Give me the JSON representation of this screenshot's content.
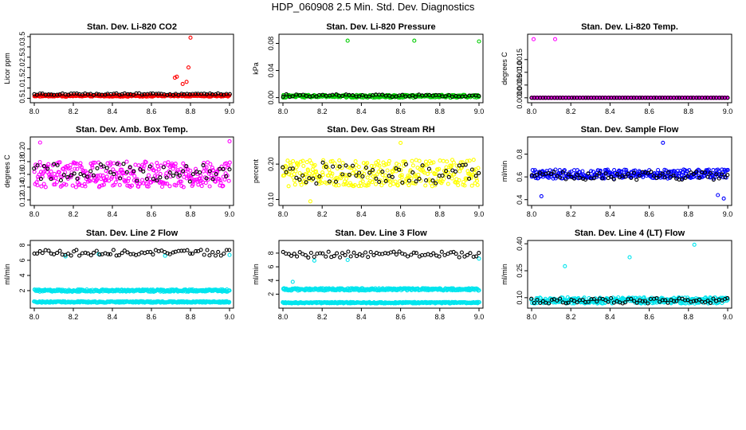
{
  "title": "HDP_060908  2.5 Min. Std. Dev. Diagnostics",
  "chart_data": [
    {
      "type": "scatter",
      "title": "Stan. Dev. Li-820 CO2",
      "xlabel": "",
      "ylabel": "Licor ppm",
      "xlim": [
        8.0,
        9.0
      ],
      "ylim": [
        0.4,
        3.5
      ],
      "xticks": [
        "8.0",
        "8.2",
        "8.4",
        "8.6",
        "8.8",
        "9.0"
      ],
      "yticks": [
        "0.5",
        "1.0",
        "1.5",
        "2.0",
        "2.5",
        "3.0",
        "3.5"
      ],
      "series": [
        {
          "name": "red",
          "color": "#ff0000",
          "n": 300,
          "base": 0.62,
          "spread": 0.08,
          "extra_x": [
            8.72,
            8.73,
            8.76,
            8.78,
            8.79,
            8.8
          ],
          "extra_y": [
            1.5,
            1.55,
            1.2,
            1.3,
            2.0,
            3.45
          ]
        },
        {
          "name": "black",
          "color": "#000000",
          "n": 70,
          "base": 0.7,
          "spread": 0.08,
          "extra_x": [],
          "extra_y": []
        }
      ]
    },
    {
      "type": "scatter",
      "title": "Stan. Dev. Li-820 Pressure",
      "xlabel": "",
      "ylabel": "kPa",
      "xlim": [
        8.0,
        9.0
      ],
      "ylim": [
        -0.004,
        0.09
      ],
      "xticks": [
        "8.0",
        "8.2",
        "8.4",
        "8.6",
        "8.8",
        "9.0"
      ],
      "yticks": [
        "0.00",
        "0.04",
        "0.08"
      ],
      "series": [
        {
          "name": "green",
          "color": "#00cc00",
          "n": 300,
          "base": 0.002,
          "spread": 0.004,
          "extra_x": [
            8.33,
            8.67,
            9.0
          ],
          "extra_y": [
            0.084,
            0.084,
            0.083
          ]
        },
        {
          "name": "black",
          "color": "#000000",
          "n": 60,
          "base": 0.003,
          "spread": 0.004,
          "extra_x": [],
          "extra_y": []
        }
      ]
    },
    {
      "type": "scatter",
      "title": "Stan. Dev. Li-820 Temp.",
      "xlabel": "",
      "ylabel": "degrees C",
      "xlim": [
        8.0,
        9.0
      ],
      "ylim": [
        -0.0001,
        0.0024
      ],
      "xticks": [
        "8.0",
        "8.2",
        "8.4",
        "8.6",
        "8.8",
        "9.0"
      ],
      "yticks": [
        "0.0000",
        "0.0005",
        "0.0010",
        "0.0015"
      ],
      "series": [
        {
          "name": "magenta",
          "color": "#ff00ff",
          "n": 300,
          "base": 0.0,
          "spread": 0.0,
          "extra_x": [
            8.01,
            8.12
          ],
          "extra_y": [
            0.0023,
            0.0023
          ]
        },
        {
          "name": "black",
          "color": "#000000",
          "n": 70,
          "base": 0.0,
          "spread": 0.0,
          "extra_x": [],
          "extra_y": []
        }
      ]
    },
    {
      "type": "scatter",
      "title": "Stan. Dev. Amb. Box Temp.",
      "xlabel": "",
      "ylabel": "degrees C",
      "xlim": [
        8.0,
        9.0
      ],
      "ylim": [
        0.115,
        0.215
      ],
      "xticks": [
        "8.0",
        "8.2",
        "8.4",
        "8.6",
        "8.8",
        "9.0"
      ],
      "yticks": [
        "0.12",
        "0.14",
        "0.16",
        "0.18",
        "0.20"
      ],
      "series": [
        {
          "name": "magenta",
          "color": "#ff00ff",
          "n": 320,
          "base": 0.16,
          "spread": 0.04,
          "extra_x": [
            8.03,
            9.0
          ],
          "extra_y": [
            0.21,
            0.212
          ]
        },
        {
          "name": "black",
          "color": "#000000",
          "n": 60,
          "base": 0.162,
          "spread": 0.03,
          "extra_x": [],
          "extra_y": []
        }
      ]
    },
    {
      "type": "scatter",
      "title": "Stan. Dev. Gas Stream RH",
      "xlabel": "",
      "ylabel": "percent",
      "xlim": [
        8.0,
        9.0
      ],
      "ylim": [
        0.09,
        0.27
      ],
      "xticks": [
        "8.0",
        "8.2",
        "8.4",
        "8.6",
        "8.8",
        "9.0"
      ],
      "yticks": [
        "0.10",
        "0.20"
      ],
      "series": [
        {
          "name": "yellow",
          "color": "#ffff00",
          "n": 320,
          "base": 0.175,
          "spread": 0.075,
          "extra_x": [
            8.14,
            8.6
          ],
          "extra_y": [
            0.095,
            0.26
          ]
        },
        {
          "name": "black",
          "color": "#000000",
          "n": 60,
          "base": 0.175,
          "spread": 0.06,
          "extra_x": [],
          "extra_y": []
        }
      ]
    },
    {
      "type": "scatter",
      "title": "Stan. Dev. Sample Flow",
      "xlabel": "",
      "ylabel": "ml/min",
      "xlim": [
        8.0,
        9.0
      ],
      "ylim": [
        0.37,
        0.93
      ],
      "xticks": [
        "8.0",
        "8.2",
        "8.4",
        "8.6",
        "8.8",
        "9.0"
      ],
      "yticks": [
        "0.4",
        "0.6",
        "0.8"
      ],
      "series": [
        {
          "name": "blue",
          "color": "#0000ff",
          "n": 300,
          "base": 0.625,
          "spread": 0.08,
          "extra_x": [
            8.05,
            8.67,
            8.98,
            8.95
          ],
          "extra_y": [
            0.43,
            0.9,
            0.41,
            0.44
          ]
        },
        {
          "name": "black",
          "color": "#000000",
          "n": 70,
          "base": 0.61,
          "spread": 0.07,
          "extra_x": [],
          "extra_y": []
        }
      ]
    },
    {
      "type": "scatter",
      "title": "Stan. Dev. Line 2 Flow",
      "xlabel": "",
      "ylabel": "ml/min",
      "xlim": [
        8.0,
        9.0
      ],
      "ylim": [
        0.0,
        8.3
      ],
      "xticks": [
        "8.0",
        "8.2",
        "8.4",
        "8.6",
        "8.8",
        "9.0"
      ],
      "yticks": [
        "2",
        "4",
        "6",
        "8"
      ],
      "series": [
        {
          "name": "cyan-high",
          "color": "#00e5ee",
          "n": 320,
          "base": 2.0,
          "spread": 0.3,
          "extra_x": [
            8.16,
            8.33,
            8.67,
            9.0
          ],
          "extra_y": [
            6.5,
            6.8,
            6.6,
            6.7
          ]
        },
        {
          "name": "cyan-low",
          "color": "#00e5ee",
          "n": 320,
          "base": 0.5,
          "spread": 0.2,
          "extra_x": [],
          "extra_y": []
        },
        {
          "name": "black",
          "color": "#000000",
          "n": 70,
          "base": 7.0,
          "spread": 0.8,
          "extra_x": [],
          "extra_y": []
        }
      ]
    },
    {
      "type": "scatter",
      "title": "Stan. Dev. Line 3 Flow",
      "xlabel": "",
      "ylabel": "ml/min",
      "xlim": [
        8.0,
        9.0
      ],
      "ylim": [
        0.3,
        9.5
      ],
      "xticks": [
        "8.0",
        "8.2",
        "8.4",
        "8.6",
        "8.8",
        "9.0"
      ],
      "yticks": [
        "2",
        "4",
        "6",
        "8"
      ],
      "series": [
        {
          "name": "cyan-high",
          "color": "#00e5ee",
          "n": 320,
          "base": 2.7,
          "spread": 0.35,
          "extra_x": [
            8.05,
            8.16,
            8.33,
            9.0
          ],
          "extra_y": [
            3.8,
            6.9,
            7.0,
            7.2
          ]
        },
        {
          "name": "cyan-low",
          "color": "#00e5ee",
          "n": 320,
          "base": 0.75,
          "spread": 0.2,
          "extra_x": [],
          "extra_y": []
        },
        {
          "name": "black",
          "color": "#000000",
          "n": 70,
          "base": 7.8,
          "spread": 0.9,
          "extra_x": [],
          "extra_y": []
        }
      ]
    },
    {
      "type": "scatter",
      "title": "Stan. Dev. Line 4 (LT) Flow",
      "xlabel": "",
      "ylabel": "ml/min",
      "xlim": [
        8.0,
        9.0
      ],
      "ylim": [
        0.055,
        0.405
      ],
      "xticks": [
        "8.0",
        "8.2",
        "8.4",
        "8.6",
        "8.8",
        "9.0"
      ],
      "yticks": [
        "0.10",
        "0.25",
        "0.40"
      ],
      "series": [
        {
          "name": "cyan",
          "color": "#00e5ee",
          "n": 320,
          "base": 0.085,
          "spread": 0.035,
          "extra_x": [
            8.17,
            8.5,
            8.83
          ],
          "extra_y": [
            0.275,
            0.325,
            0.395
          ]
        },
        {
          "name": "black",
          "color": "#000000",
          "n": 70,
          "base": 0.083,
          "spread": 0.03,
          "extra_x": [],
          "extra_y": []
        }
      ]
    }
  ]
}
